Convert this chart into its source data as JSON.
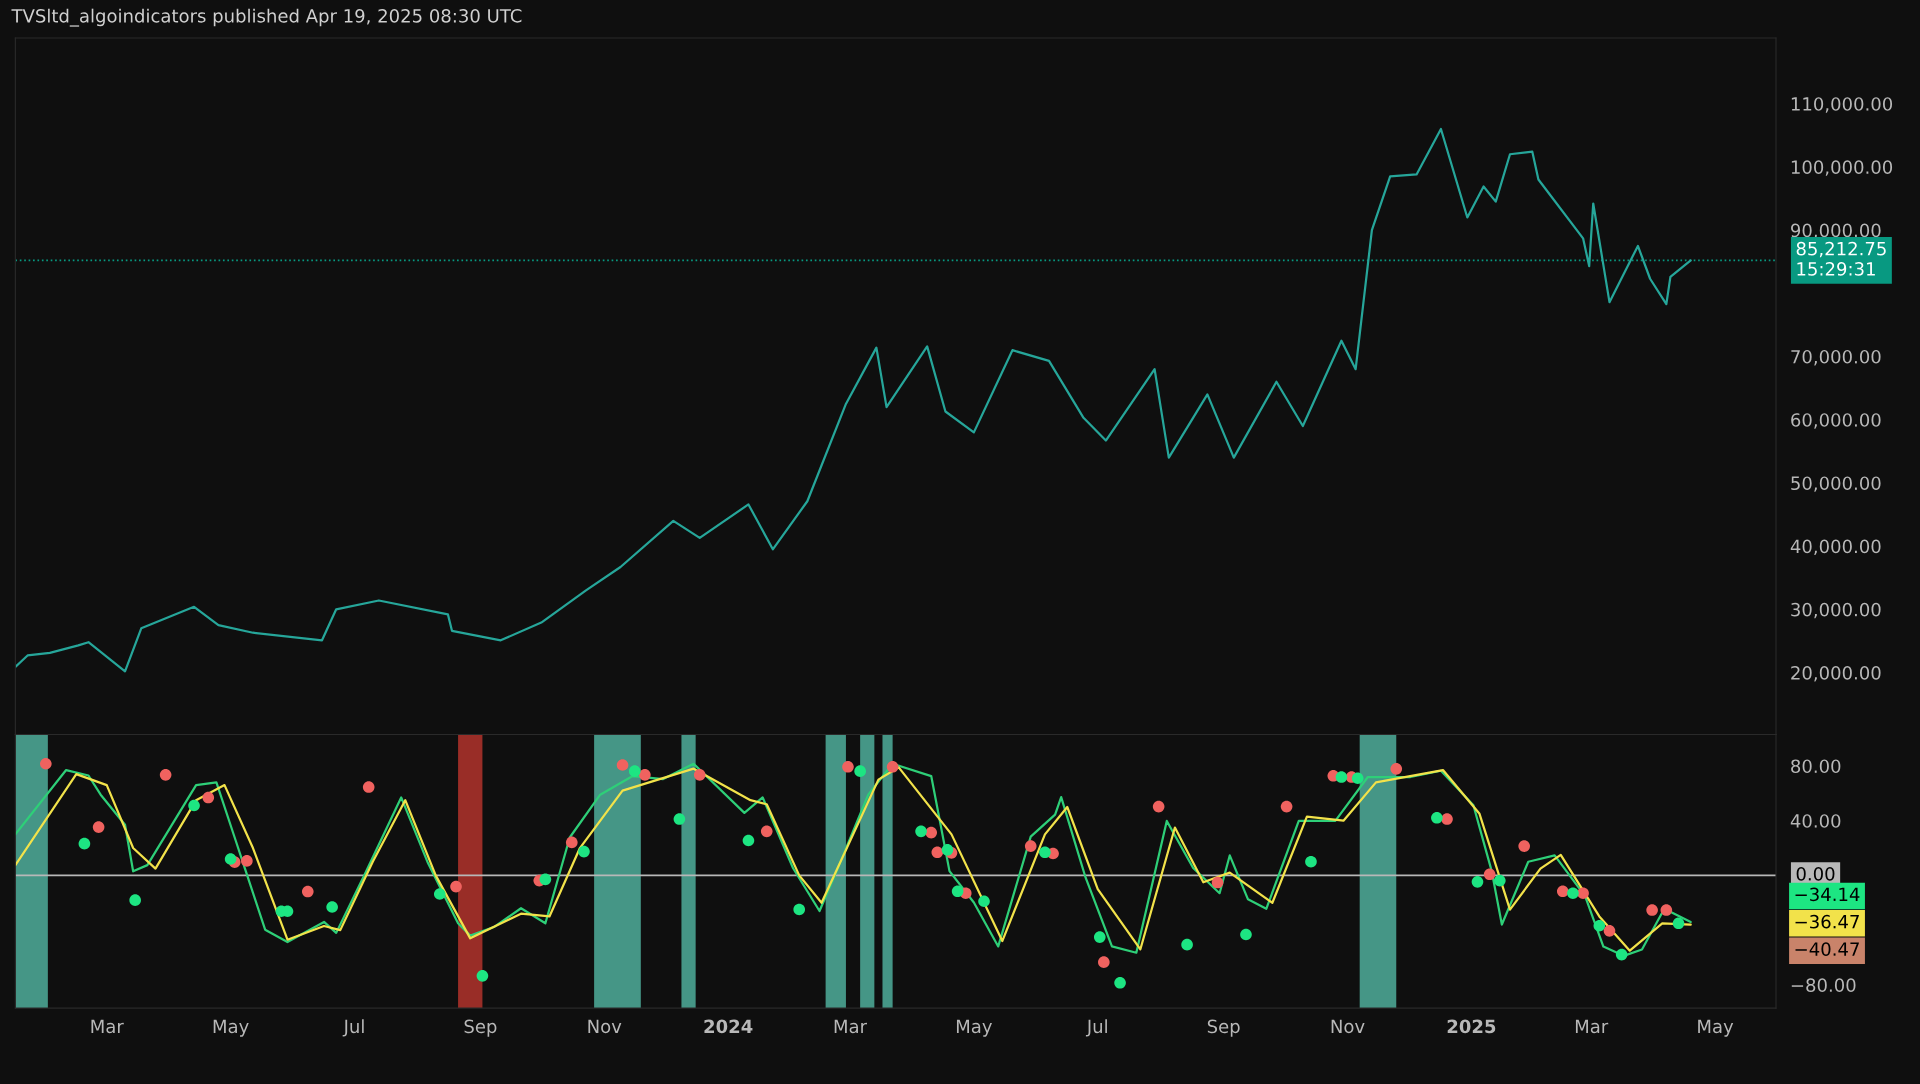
{
  "chart_data": [
    {
      "type": "line",
      "title": "TVSltd_algoindicators published Apr 19, 2025 08:30 UTC",
      "xlim": [
        "2023-01-15",
        "2025-05-31"
      ],
      "ylim": [
        10200,
        120400
      ],
      "yticks": [
        {
          "value": 20000,
          "label": "20,000.00"
        },
        {
          "value": 30000,
          "label": "30,000.00"
        },
        {
          "value": 40000,
          "label": "40,000.00"
        },
        {
          "value": 50000,
          "label": "50,000.00"
        },
        {
          "value": 60000,
          "label": "60,000.00"
        },
        {
          "value": 70000,
          "label": "70,000.00"
        },
        {
          "value": 90000,
          "label": "90,000.00"
        },
        {
          "value": 100000,
          "label": "100,000.00"
        },
        {
          "value": 110000,
          "label": "110,000.00"
        }
      ],
      "tick_labels": "y",
      "grid": false,
      "legend": false,
      "marker": "none",
      "line_style": "solid",
      "ref_lines": [
        {
          "axis": "y",
          "value": 85212.75,
          "label": "85,212.75\n15:29:31",
          "color": "#089981",
          "line_style": "dotted"
        }
      ],
      "series": [
        {
          "color": "#26a69a",
          "x": [
            "2023-01-15",
            "2023-01-21",
            "2023-02-01",
            "2023-02-15",
            "2023-02-20",
            "2023-03-10",
            "2023-03-18",
            "2023-04-13",
            "2023-04-25",
            "2023-05-12",
            "2023-06-15",
            "2023-06-22",
            "2023-07-13",
            "2023-08-16",
            "2023-08-18",
            "2023-09-11",
            "2023-10-01",
            "2023-10-23",
            "2023-11-09",
            "2023-12-05",
            "2023-12-18",
            "2024-01-11",
            "2024-01-23",
            "2024-02-09",
            "2024-02-28",
            "2024-03-14",
            "2024-03-19",
            "2024-04-08",
            "2024-04-17",
            "2024-05-01",
            "2024-05-20",
            "2024-06-07",
            "2024-06-24",
            "2024-07-05",
            "2024-07-29",
            "2024-08-05",
            "2024-08-24",
            "2024-09-06",
            "2024-09-27",
            "2024-10-10",
            "2024-10-29",
            "2024-11-05",
            "2024-11-13",
            "2024-11-22",
            "2024-12-05",
            "2024-12-17",
            "2024-12-30",
            "2025-01-07",
            "2025-01-13",
            "2025-01-20",
            "2025-01-31",
            "2025-02-03",
            "2025-02-25",
            "2025-02-28",
            "2025-03-02",
            "2025-03-10",
            "2025-03-24",
            "2025-03-30",
            "2025-04-07",
            "2025-04-09",
            "2025-04-19"
          ],
          "values": [
            20900,
            22700,
            23100,
            24300,
            24800,
            20200,
            27000,
            30400,
            27500,
            26300,
            25100,
            30000,
            31400,
            29200,
            26600,
            25100,
            27900,
            33000,
            36700,
            44000,
            41300,
            46600,
            39500,
            47100,
            62500,
            71400,
            62000,
            71600,
            61300,
            58000,
            71000,
            69300,
            60300,
            56700,
            68000,
            54000,
            64000,
            54000,
            66000,
            59000,
            72500,
            68000,
            90000,
            98500,
            98800,
            106000,
            92000,
            96900,
            94500,
            102000,
            102400,
            98000,
            88700,
            84300,
            94200,
            78600,
            87500,
            82300,
            78300,
            82600,
            85200
          ]
        }
      ]
    },
    {
      "type": "line",
      "xlim": [
        "2023-01-15",
        "2025-05-31"
      ],
      "ylim": [
        -97,
        103
      ],
      "yticks": [
        {
          "value": 80,
          "label": "80.00"
        },
        {
          "value": 40,
          "label": "40.00"
        },
        {
          "value": -80,
          "label": "−80.00"
        }
      ],
      "xticks": [
        {
          "value": "2023-03-01",
          "label": "Mar"
        },
        {
          "value": "2023-05-01",
          "label": "May"
        },
        {
          "value": "2023-07-01",
          "label": "Jul"
        },
        {
          "value": "2023-09-01",
          "label": "Sep"
        },
        {
          "value": "2023-11-01",
          "label": "Nov"
        },
        {
          "value": "2024-01-01",
          "label": "2024"
        },
        {
          "value": "2024-03-01",
          "label": "Mar"
        },
        {
          "value": "2024-05-01",
          "label": "May"
        },
        {
          "value": "2024-07-01",
          "label": "Jul"
        },
        {
          "value": "2024-09-01",
          "label": "Sep"
        },
        {
          "value": "2024-11-01",
          "label": "Nov"
        },
        {
          "value": "2025-01-01",
          "label": "2025"
        },
        {
          "value": "2025-03-01",
          "label": "Mar"
        },
        {
          "value": "2025-05-01",
          "label": "May"
        }
      ],
      "grid": false,
      "legend": false,
      "ref_lines": [
        {
          "axis": "y",
          "value": 0,
          "label": "0.00",
          "color": "#b8b8b8",
          "line_style": "solid"
        }
      ],
      "bands": [
        {
          "axis": "x",
          "from": "2023-01-15",
          "to": "2023-01-31",
          "color": "#4fae9b"
        },
        {
          "axis": "x",
          "from": "2023-08-21",
          "to": "2023-09-02",
          "color": "#b2322c"
        },
        {
          "axis": "x",
          "from": "2023-10-27",
          "to": "2023-11-19",
          "color": "#4fae9b"
        },
        {
          "axis": "x",
          "from": "2023-12-09",
          "to": "2023-12-16",
          "color": "#4fae9b"
        },
        {
          "axis": "x",
          "from": "2024-02-18",
          "to": "2024-02-28",
          "color": "#4fae9b"
        },
        {
          "axis": "x",
          "from": "2024-03-06",
          "to": "2024-03-13",
          "color": "#4fae9b"
        },
        {
          "axis": "x",
          "from": "2024-03-17",
          "to": "2024-03-22",
          "color": "#4fae9b"
        },
        {
          "axis": "x",
          "from": "2024-11-07",
          "to": "2024-11-25",
          "color": "#4fae9b"
        }
      ],
      "annotations": [
        "−34.14",
        "−36.47",
        "−40.47"
      ],
      "series": [
        {
          "type": "line",
          "color": "#2ecf78",
          "marker": "none",
          "line_style": "solid",
          "x": [
            "2023-01-15",
            "2023-02-09",
            "2023-02-20",
            "2023-02-26",
            "2023-03-10",
            "2023-03-14",
            "2023-03-21",
            "2023-04-02",
            "2023-04-14",
            "2023-04-24",
            "2023-05-03",
            "2023-05-09",
            "2023-05-18",
            "2023-05-29",
            "2023-06-16",
            "2023-06-22",
            "2023-07-06",
            "2023-07-24",
            "2023-08-06",
            "2023-08-21",
            "2023-08-27",
            "2023-09-08",
            "2023-09-21",
            "2023-10-03",
            "2023-10-15",
            "2023-10-30",
            "2023-11-15",
            "2023-11-30",
            "2023-12-15",
            "2024-01-09",
            "2024-01-18",
            "2024-02-02",
            "2024-02-15",
            "2024-02-24",
            "2024-03-10",
            "2024-03-22",
            "2024-04-10",
            "2024-04-19",
            "2024-05-01",
            "2024-05-13",
            "2024-05-29",
            "2024-06-10",
            "2024-06-13",
            "2024-06-25",
            "2024-07-08",
            "2024-07-20",
            "2024-08-04",
            "2024-08-17",
            "2024-08-30",
            "2024-09-04",
            "2024-09-13",
            "2024-09-22",
            "2024-10-08",
            "2024-10-26",
            "2024-11-11",
            "2024-12-02",
            "2024-12-17",
            "2025-01-02",
            "2025-01-11",
            "2025-01-16",
            "2025-01-29",
            "2025-02-11",
            "2025-02-26",
            "2025-03-07",
            "2025-03-17",
            "2025-03-26",
            "2025-04-06",
            "2025-04-19"
          ],
          "values": [
            30,
            77,
            73,
            59,
            37,
            3,
            7.5,
            36.7,
            66,
            68,
            27.7,
            0.7,
            -39.7,
            -48.7,
            -34,
            -42,
            0.7,
            57,
            9.7,
            -35,
            -44,
            -37.5,
            -24,
            -35,
            27.7,
            59,
            72.6,
            70.4,
            81.6,
            45.7,
            57,
            5.2,
            -26,
            5.2,
            59,
            81.6,
            72.6,
            3.1,
            -19.8,
            -51.9,
            28.3,
            44.4,
            57.2,
            -1.5,
            -51.9,
            -56.5,
            39.8,
            5.4,
            -13,
            14.6,
            -17.5,
            -24.4,
            39.8,
            39.8,
            71.9,
            71.9,
            76.5,
            51.3,
            3.1,
            -35.9,
            10,
            14.6,
            -15.2,
            -52,
            -58.8,
            -54.2,
            -24.4,
            -34
          ]
        },
        {
          "type": "line",
          "color": "#f2e24a",
          "marker": "none",
          "line_style": "solid",
          "x": [
            "2023-01-15",
            "2023-02-14",
            "2023-03-01",
            "2023-03-14",
            "2023-03-25",
            "2023-04-14",
            "2023-04-28",
            "2023-05-12",
            "2023-05-29",
            "2023-06-16",
            "2023-06-24",
            "2023-07-10",
            "2023-07-26",
            "2023-08-10",
            "2023-08-27",
            "2023-09-21",
            "2023-10-05",
            "2023-10-20",
            "2023-11-10",
            "2023-12-15",
            "2024-01-12",
            "2024-01-20",
            "2024-02-05",
            "2024-02-16",
            "2024-03-15",
            "2024-03-25",
            "2024-04-20",
            "2024-05-15",
            "2024-06-05",
            "2024-06-16",
            "2024-07-01",
            "2024-07-22",
            "2024-08-08",
            "2024-08-22",
            "2024-09-04",
            "2024-09-25",
            "2024-10-12",
            "2024-10-30",
            "2024-11-15",
            "2024-12-18",
            "2025-01-05",
            "2025-01-20",
            "2025-02-04",
            "2025-02-14",
            "2025-03-05",
            "2025-03-20",
            "2025-04-05",
            "2025-04-19"
          ],
          "values": [
            7.5,
            74,
            66,
            20,
            5,
            55,
            66,
            20,
            -47,
            -37,
            -40,
            10,
            55,
            0,
            -46,
            -28,
            -30,
            20,
            62,
            78,
            55,
            52,
            0,
            -20,
            70,
            79,
            30,
            -48,
            30,
            50,
            -10,
            -54,
            35,
            -5,
            2,
            -20,
            43,
            40,
            68,
            77,
            45,
            -25,
            5,
            15,
            -30,
            -55,
            -35,
            -36
          ]
        },
        {
          "type": "scatter",
          "color": "#f0625f",
          "marker": "circle",
          "x": [
            "2023-01-30",
            "2023-02-25",
            "2023-03-30",
            "2023-04-20",
            "2023-05-03",
            "2023-05-09",
            "2023-06-08",
            "2023-07-08",
            "2023-08-20",
            "2023-09-30",
            "2023-10-16",
            "2023-11-10",
            "2023-11-21",
            "2023-12-18",
            "2024-01-20",
            "2024-02-29",
            "2024-03-22",
            "2024-04-10",
            "2024-04-20",
            "2024-04-13",
            "2024-04-27",
            "2024-05-29",
            "2024-06-09",
            "2024-07-04",
            "2024-07-31",
            "2024-08-29",
            "2024-10-02",
            "2024-10-25",
            "2024-11-03",
            "2024-11-25",
            "2024-12-20",
            "2025-01-10",
            "2025-01-27",
            "2025-02-15",
            "2025-02-25",
            "2025-03-10",
            "2025-03-31",
            "2025-04-07"
          ],
          "values": [
            81.6,
            35.3,
            73.5,
            56.9,
            9.7,
            10.6,
            -11.8,
            64.6,
            -8.2,
            -3.8,
            24.1,
            80.7,
            73.5,
            73.5,
            32.2,
            79.4,
            79.4,
            31.3,
            16.5,
            16.9,
            -13,
            21.4,
            16,
            -63.4,
            50.3,
            -5.2,
            50.3,
            72.8,
            71.9,
            77.9,
            41.2,
            0.8,
            21.4,
            -11.6,
            -13,
            -40.5,
            -25.3,
            -25.3
          ]
        },
        {
          "type": "scatter",
          "color": "#1de582",
          "marker": "circle",
          "x": [
            "2023-02-18",
            "2023-03-15",
            "2023-04-13",
            "2023-05-01",
            "2023-05-26",
            "2023-05-29",
            "2023-06-20",
            "2023-08-12",
            "2023-09-02",
            "2023-10-03",
            "2023-10-22",
            "2023-11-16",
            "2023-12-08",
            "2024-01-11",
            "2024-02-05",
            "2024-03-06",
            "2024-04-05",
            "2024-04-18",
            "2024-04-23",
            "2024-05-06",
            "2024-06-05",
            "2024-07-02",
            "2024-07-12",
            "2024-08-14",
            "2024-09-12",
            "2024-10-14",
            "2024-10-29",
            "2024-11-06",
            "2024-12-15",
            "2025-01-04",
            "2025-01-15",
            "2025-02-20",
            "2025-03-05",
            "2025-03-16",
            "2025-04-13"
          ],
          "values": [
            23.2,
            -18.1,
            51.1,
            12,
            -26.2,
            -26.2,
            -23.1,
            -13.6,
            -73.4,
            -2.9,
            17.4,
            76.2,
            41.2,
            25.5,
            -24.9,
            76.2,
            32.2,
            18.7,
            -11.6,
            -18.9,
            16.9,
            -45.1,
            -78.5,
            -50.6,
            -43.2,
            10,
            71.9,
            71,
            42.1,
            -4.7,
            -3.8,
            -13,
            -36.8,
            -57.9,
            -35
          ]
        }
      ]
    }
  ]
}
